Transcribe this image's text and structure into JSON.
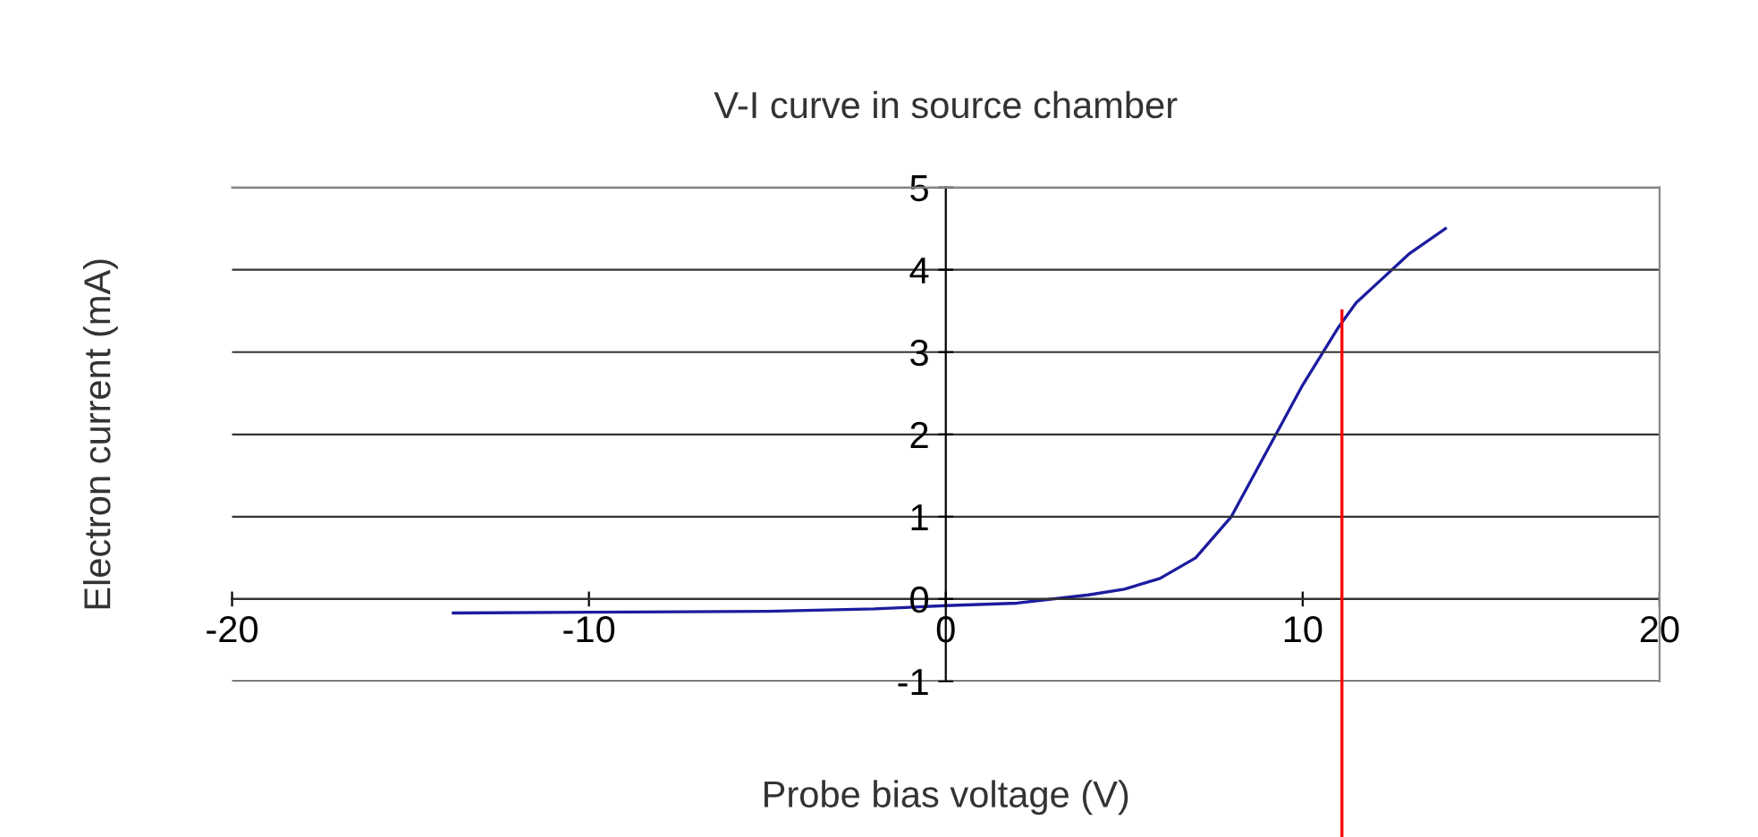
{
  "chart_data": {
    "type": "line",
    "title": "V-I curve in source chamber",
    "xlabel": "Probe bias voltage (V)",
    "ylabel": "Electron current (mA)",
    "series": [
      {
        "color": "#1c1ca0",
        "x": [
          -13.8,
          -10,
          -5,
          -2,
          0,
          2,
          4,
          5,
          6,
          7,
          8,
          9,
          10,
          11,
          11.5,
          12,
          13,
          14
        ],
        "values": [
          -0.17,
          -0.16,
          -0.15,
          -0.12,
          -0.08,
          -0.05,
          0.05,
          0.12,
          0.25,
          0.5,
          1.0,
          1.8,
          2.6,
          3.3,
          3.6,
          3.8,
          4.2,
          4.5
        ]
      }
    ],
    "xlim": [
      -20,
      20
    ],
    "xticks": [
      -20,
      -10,
      0,
      10,
      20
    ],
    "ylim": [
      -1,
      5
    ],
    "yticks": [
      -1,
      0,
      1,
      2,
      3,
      4,
      5
    ],
    "grid": "y",
    "legend": false,
    "marker": "none",
    "line_style": "solid",
    "ref_lines": [
      {
        "axis": "x",
        "value": 11.1,
        "color": "#ff0000"
      }
    ]
  }
}
